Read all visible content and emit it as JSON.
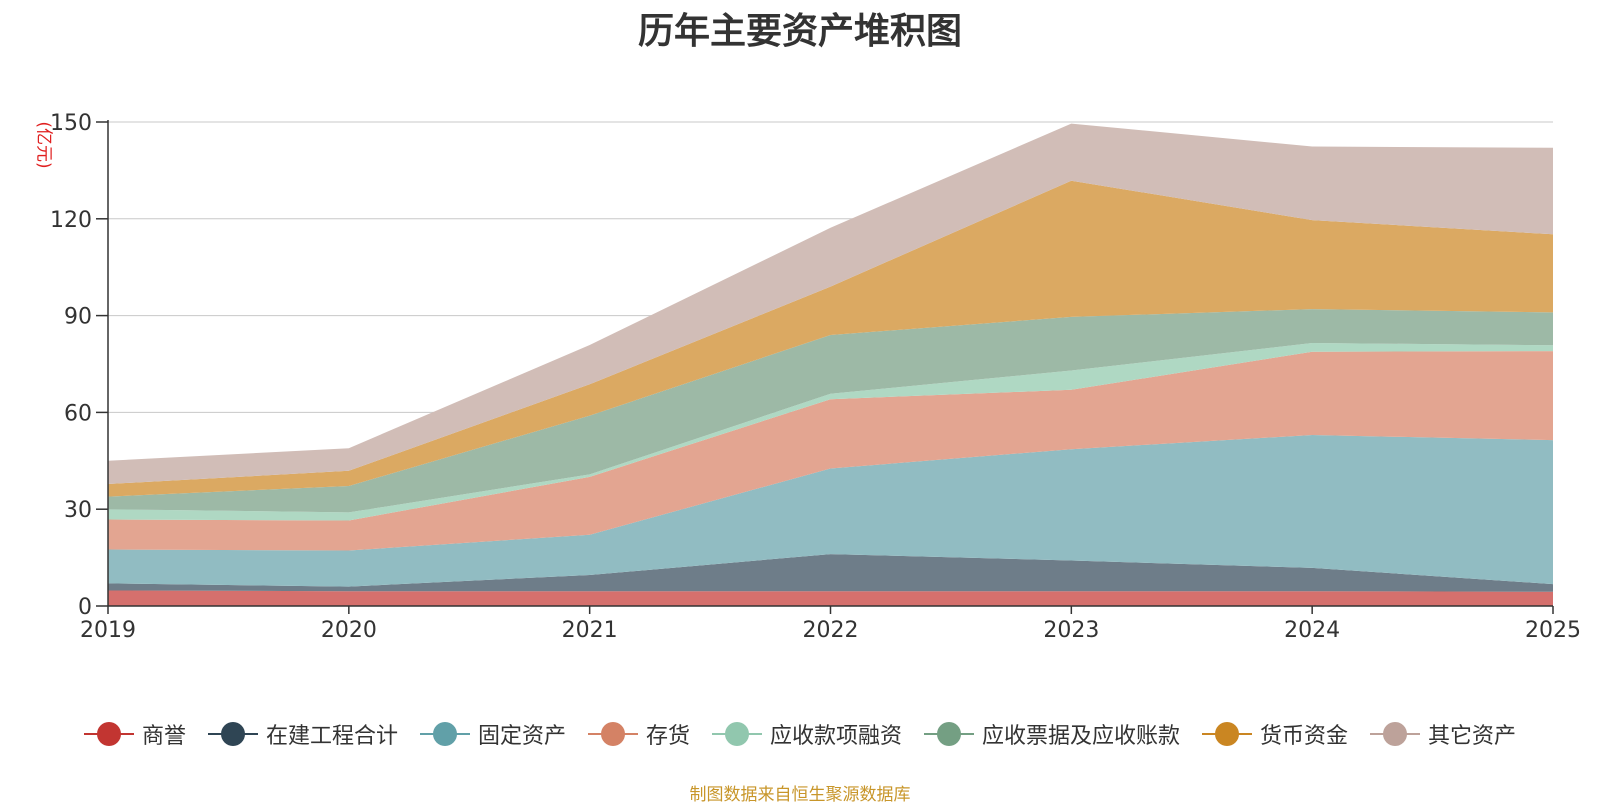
{
  "chart_data": {
    "type": "area",
    "stacked": true,
    "title": "历年主要资产堆积图",
    "ylabel": "(亿元)",
    "xlabel": "",
    "x": [
      "2019",
      "2020",
      "2021",
      "2022",
      "2023",
      "2024",
      "2025"
    ],
    "ylim": [
      0,
      150
    ],
    "yticks": [
      0,
      30,
      60,
      90,
      120,
      150
    ],
    "grid": true,
    "legend_position": "bottom",
    "series": [
      {
        "name": "商誉",
        "color": "#c23531",
        "fill": "#d5706d",
        "values": [
          4.8,
          4.6,
          4.6,
          4.6,
          4.6,
          4.6,
          4.4
        ]
      },
      {
        "name": "在建工程合计",
        "color": "#2f4554",
        "fill": "#6e7d89",
        "values": [
          2.2,
          1.4,
          5.0,
          11.5,
          9.5,
          7.2,
          2.4
        ]
      },
      {
        "name": "固定资产",
        "color": "#61a0a8",
        "fill": "#91bcc2",
        "values": [
          10.5,
          11.2,
          12.5,
          26.5,
          34.5,
          41.2,
          44.6
        ]
      },
      {
        "name": "存货",
        "color": "#d48265",
        "fill": "#e3a591",
        "values": [
          9.3,
          9.3,
          17.9,
          21.5,
          18.4,
          25.8,
          27.6
        ]
      },
      {
        "name": "应收款项融资",
        "color": "#91c7ae",
        "fill": "#afd8c3",
        "values": [
          3.2,
          2.5,
          0.8,
          1.7,
          6.0,
          2.7,
          1.8
        ]
      },
      {
        "name": "应收票据及应收账款",
        "color": "#749f83",
        "fill": "#9db9a6",
        "values": [
          3.9,
          8.2,
          18.2,
          18.2,
          16.6,
          10.5,
          10.2
        ]
      },
      {
        "name": "货币资金",
        "color": "#ca8622",
        "fill": "#dba962",
        "values": [
          3.9,
          4.7,
          9.7,
          15.0,
          42.2,
          27.6,
          24.2
        ]
      },
      {
        "name": "其它资产",
        "color": "#bda29a",
        "fill": "#d1bdb7",
        "values": [
          7.2,
          7.0,
          12.2,
          18.2,
          17.7,
          22.8,
          26.8
        ]
      }
    ]
  },
  "source_note": "制图数据来自恒生聚源数据库",
  "colors": {
    "title": "#333333",
    "axis": "#333333",
    "grid": "#c8c8c8",
    "unit_label": "#e02020",
    "source_note": "#c8962a"
  }
}
